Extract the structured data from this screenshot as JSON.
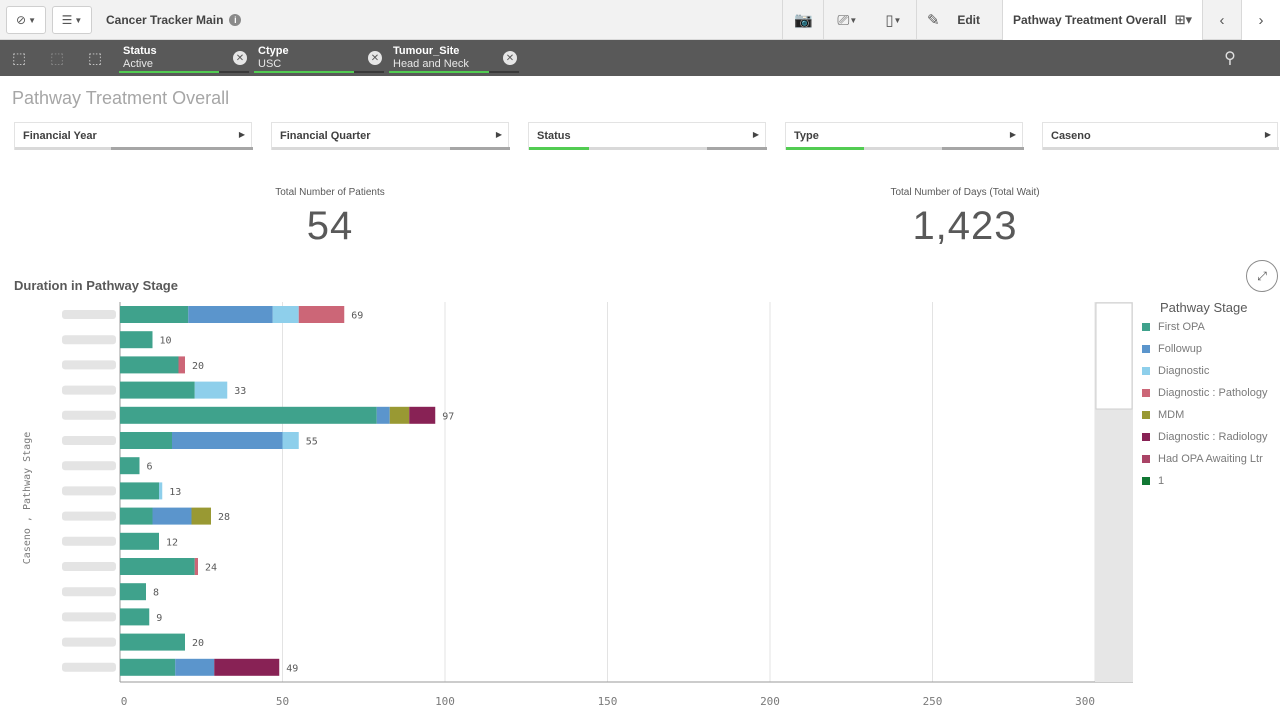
{
  "toolbar": {
    "app_title": "Cancer Tracker Main",
    "edit_label": "Edit",
    "sheet_name": "Pathway Treatment Overall"
  },
  "selections": [
    {
      "field": "Status",
      "value": "Active"
    },
    {
      "field": "Ctype",
      "value": "USC"
    },
    {
      "field": "Tumour_Site",
      "value": "Head and Neck"
    }
  ],
  "sheet": {
    "title": "Pathway Treatment Overall",
    "filters": [
      {
        "label": "Financial Year",
        "has_selection": false
      },
      {
        "label": "Financial Quarter",
        "has_selection": false
      },
      {
        "label": "Status",
        "has_selection": true
      },
      {
        "label": "Type",
        "has_selection": true
      },
      {
        "label": "Caseno",
        "has_selection": false
      }
    ]
  },
  "kpis": {
    "patients_label": "Total Number of Patients",
    "patients_value": "54",
    "days_label": "Total Number of Days (Total Wait)",
    "days_value": "1,423"
  },
  "chart_data": {
    "type": "bar",
    "orientation": "horizontal",
    "stacked": true,
    "title": "Duration in Pathway Stage",
    "ylabel": "Caseno , Pathway Stage",
    "xlim": [
      0,
      300
    ],
    "x_ticks": [
      0,
      50,
      100,
      150,
      200,
      250,
      300
    ],
    "legend_title": "Pathway Stage",
    "legend_position": "right",
    "series": [
      {
        "name": "First OPA",
        "color": "#3fa28c"
      },
      {
        "name": "Followup",
        "color": "#5b95cc"
      },
      {
        "name": "Diagnostic",
        "color": "#8ecfeb"
      },
      {
        "name": "Diagnostic : Pathology",
        "color": "#cc6677"
      },
      {
        "name": "MDM",
        "color": "#999933"
      },
      {
        "name": "Diagnostic : Radiology",
        "color": "#882255"
      },
      {
        "name": "Had OPA Awaiting Ltr",
        "color": "#aa4466"
      },
      {
        "name": "1",
        "color": "#117733"
      }
    ],
    "rows": [
      {
        "total": "69",
        "segments": [
          21,
          26,
          8,
          14,
          0,
          0,
          0,
          0
        ]
      },
      {
        "total": "10",
        "segments": [
          10,
          0,
          0,
          0,
          0,
          0,
          0,
          0
        ]
      },
      {
        "total": "20",
        "segments": [
          18,
          0,
          0,
          2,
          0,
          0,
          0,
          0
        ]
      },
      {
        "total": "33",
        "segments": [
          23,
          0,
          10,
          0,
          0,
          0,
          0,
          0
        ]
      },
      {
        "total": "97",
        "segments": [
          79,
          4,
          0,
          0,
          6,
          8,
          0,
          0
        ]
      },
      {
        "total": "55",
        "segments": [
          16,
          34,
          5,
          0,
          0,
          0,
          0,
          0
        ]
      },
      {
        "total": "6",
        "segments": [
          6,
          0,
          0,
          0,
          0,
          0,
          0,
          0
        ]
      },
      {
        "total": "13",
        "segments": [
          12,
          0,
          1,
          0,
          0,
          0,
          0,
          0
        ]
      },
      {
        "total": "28",
        "segments": [
          10,
          12,
          0,
          0,
          6,
          0,
          0,
          0
        ]
      },
      {
        "total": "12",
        "segments": [
          12,
          0,
          0,
          0,
          0,
          0,
          0,
          0
        ]
      },
      {
        "total": "24",
        "segments": [
          23,
          0,
          0,
          1,
          0,
          0,
          0,
          0
        ]
      },
      {
        "total": "8",
        "segments": [
          8,
          0,
          0,
          0,
          0,
          0,
          0,
          0
        ]
      },
      {
        "total": "9",
        "segments": [
          9,
          0,
          0,
          0,
          0,
          0,
          0,
          0
        ]
      },
      {
        "total": "20",
        "segments": [
          20,
          0,
          0,
          0,
          0,
          0,
          0,
          0
        ]
      },
      {
        "total": "49",
        "segments": [
          17,
          12,
          0,
          0,
          0,
          20,
          0,
          0
        ]
      }
    ],
    "grid": true
  }
}
